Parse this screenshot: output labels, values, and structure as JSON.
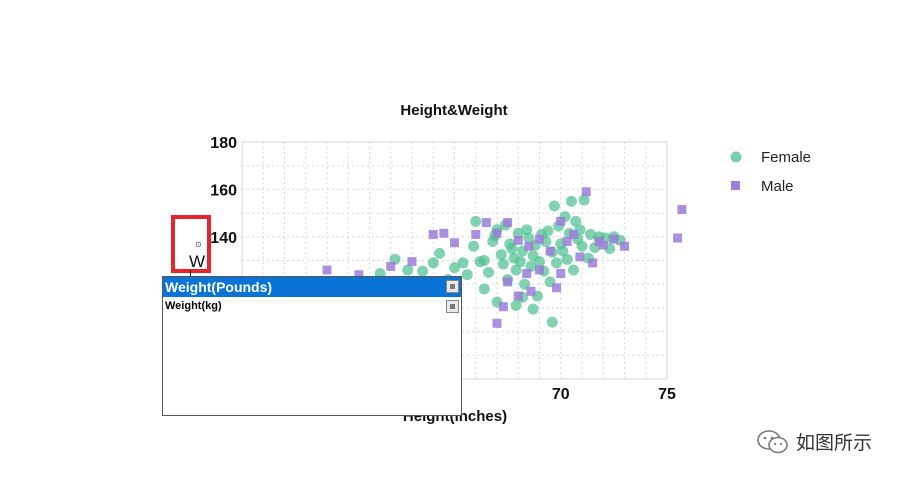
{
  "chart_data": {
    "type": "scatter",
    "title": "Height&Weight",
    "xlabel": "Height(inches)",
    "ylabel": "",
    "xlim": [
      55,
      75
    ],
    "ylim": [
      80,
      180
    ],
    "x_ticks": [
      70,
      75
    ],
    "y_ticks": [
      140,
      160,
      180
    ],
    "grid": true,
    "legend_position": "top-right",
    "series": [
      {
        "name": "Female",
        "marker": "circle",
        "color": "#4bbf8f",
        "points": [
          [
            61.5,
            124.5
          ],
          [
            62.2,
            130.5
          ],
          [
            62.8,
            126.0
          ],
          [
            63.5,
            125.5
          ],
          [
            64.0,
            129.0
          ],
          [
            64.3,
            133.0
          ],
          [
            64.7,
            122.0
          ],
          [
            65.0,
            127.0
          ],
          [
            65.4,
            129.0
          ],
          [
            65.6,
            124.0
          ],
          [
            65.9,
            136.0
          ],
          [
            66.0,
            146.5
          ],
          [
            66.2,
            129.5
          ],
          [
            66.4,
            130.0
          ],
          [
            66.6,
            125.0
          ],
          [
            66.8,
            138.0
          ],
          [
            66.9,
            140.5
          ],
          [
            67.0,
            143.0
          ],
          [
            67.2,
            132.5
          ],
          [
            67.3,
            128.5
          ],
          [
            67.4,
            145.0
          ],
          [
            67.5,
            122.0
          ],
          [
            67.6,
            137.0
          ],
          [
            67.7,
            135.0
          ],
          [
            67.8,
            131.0
          ],
          [
            67.9,
            126.0
          ],
          [
            68.0,
            141.5
          ],
          [
            68.1,
            129.5
          ],
          [
            68.2,
            134.0
          ],
          [
            68.3,
            120.0
          ],
          [
            68.4,
            143.0
          ],
          [
            68.5,
            139.5
          ],
          [
            68.6,
            127.5
          ],
          [
            68.7,
            132.0
          ],
          [
            68.8,
            136.5
          ],
          [
            68.9,
            115.0
          ],
          [
            69.0,
            129.5
          ],
          [
            69.1,
            141.0
          ],
          [
            69.2,
            125.5
          ],
          [
            69.3,
            138.0
          ],
          [
            69.4,
            142.5
          ],
          [
            69.5,
            121.0
          ],
          [
            69.6,
            133.5
          ],
          [
            69.7,
            153.0
          ],
          [
            69.8,
            129.0
          ],
          [
            69.9,
            144.5
          ],
          [
            70.0,
            137.0
          ],
          [
            70.1,
            134.0
          ],
          [
            70.2,
            148.5
          ],
          [
            70.3,
            130.5
          ],
          [
            70.4,
            141.5
          ],
          [
            70.5,
            155.0
          ],
          [
            70.6,
            126.0
          ],
          [
            70.7,
            146.5
          ],
          [
            70.8,
            139.0
          ],
          [
            70.9,
            143.0
          ],
          [
            71.0,
            136.0
          ],
          [
            71.1,
            155.5
          ],
          [
            71.3,
            131.0
          ],
          [
            71.4,
            141.0
          ],
          [
            71.6,
            135.5
          ],
          [
            71.8,
            140.0
          ],
          [
            72.1,
            139.5
          ],
          [
            72.3,
            135.0
          ],
          [
            72.5,
            140.0
          ],
          [
            72.8,
            138.5
          ],
          [
            69.6,
            104.0
          ],
          [
            68.2,
            114.5
          ],
          [
            66.4,
            118.0
          ],
          [
            67.9,
            111.0
          ],
          [
            68.7,
            109.5
          ],
          [
            67.0,
            112.5
          ]
        ]
      },
      {
        "name": "Male",
        "marker": "square",
        "color": "#9b7ed9",
        "points": [
          [
            59.0,
            126.0
          ],
          [
            60.5,
            124.0
          ],
          [
            62.0,
            127.5
          ],
          [
            63.0,
            129.5
          ],
          [
            64.0,
            141.0
          ],
          [
            64.5,
            141.5
          ],
          [
            65.0,
            137.5
          ],
          [
            66.0,
            141.0
          ],
          [
            66.5,
            146.0
          ],
          [
            67.0,
            141.5
          ],
          [
            67.5,
            146.0
          ],
          [
            68.0,
            138.5
          ],
          [
            68.5,
            136.0
          ],
          [
            69.0,
            139.0
          ],
          [
            69.5,
            134.0
          ],
          [
            70.0,
            146.5
          ],
          [
            70.3,
            138.0
          ],
          [
            70.6,
            141.0
          ],
          [
            70.9,
            131.5
          ],
          [
            71.2,
            159.0
          ],
          [
            71.5,
            129.0
          ],
          [
            71.8,
            138.0
          ],
          [
            72.0,
            136.5
          ],
          [
            72.5,
            139.0
          ],
          [
            73.0,
            136.0
          ],
          [
            75.5,
            139.5
          ],
          [
            75.7,
            151.5
          ],
          [
            69.0,
            126.0
          ],
          [
            68.4,
            124.5
          ],
          [
            67.5,
            121.0
          ],
          [
            68.6,
            117.0
          ],
          [
            69.8,
            118.5
          ],
          [
            67.3,
            110.5
          ],
          [
            67.0,
            103.5
          ],
          [
            68.0,
            115.0
          ],
          [
            70.0,
            124.5
          ]
        ]
      }
    ]
  },
  "label_editor": {
    "grip_glyph": "⊙",
    "text": "W"
  },
  "autocomplete": {
    "items": [
      {
        "label": "Weight(Pounds)",
        "selected": true
      },
      {
        "label": "Weight(kg)",
        "selected": false
      }
    ]
  },
  "watermark": {
    "text": "如图所示"
  }
}
